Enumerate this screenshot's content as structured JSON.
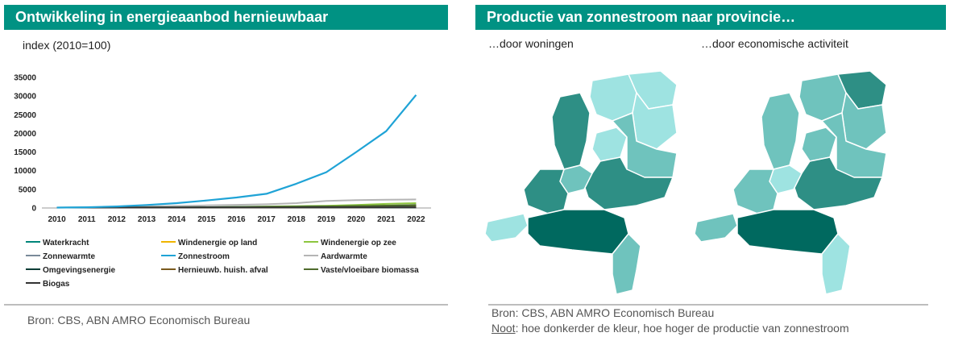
{
  "left": {
    "title": "Ontwikkeling in energieaanbod hernieuwbaar",
    "subtitle": "index (2010=100)",
    "source": "Bron: CBS, ABN AMRO Economisch Bureau"
  },
  "right": {
    "title": "Productie van zonnestroom naar provincie…",
    "map1_label": "…door woningen",
    "map2_label": "…door economische activiteit",
    "source": "Bron: CBS, ABN AMRO Economisch Bureau",
    "note_label": "Noot",
    "note_text": ": hoe donkerder de kleur, hoe hoger de productie van zonnestroom"
  },
  "chart_data": {
    "type": "line",
    "x": [
      "2010",
      "2011",
      "2012",
      "2013",
      "2014",
      "2015",
      "2016",
      "2017",
      "2018",
      "2019",
      "2020",
      "2021",
      "2022"
    ],
    "ylim": [
      0,
      35000
    ],
    "yticks": [
      0,
      5000,
      10000,
      15000,
      20000,
      25000,
      30000,
      35000
    ],
    "series": [
      {
        "name": "Waterkracht",
        "color": "#00857a",
        "values": [
          100,
          100,
          100,
          100,
          100,
          100,
          100,
          100,
          100,
          100,
          100,
          100,
          100
        ]
      },
      {
        "name": "Windenergie op land",
        "color": "#f0b400",
        "values": [
          100,
          110,
          120,
          125,
          135,
          150,
          170,
          200,
          210,
          230,
          300,
          400,
          480
        ]
      },
      {
        "name": "Windenergie op zee",
        "color": "#8dc63f",
        "values": [
          100,
          120,
          150,
          170,
          180,
          200,
          300,
          400,
          500,
          600,
          800,
          1100,
          1300
        ]
      },
      {
        "name": "Zonnewarmte",
        "color": "#7a8a99",
        "values": [
          100,
          110,
          120,
          130,
          140,
          150,
          160,
          170,
          180,
          190,
          200,
          210,
          220
        ]
      },
      {
        "name": "Zonnestroom",
        "color": "#1fa3d6",
        "values": [
          100,
          200,
          400,
          800,
          1300,
          2000,
          2800,
          3800,
          6500,
          9600,
          15000,
          20600,
          30300
        ]
      },
      {
        "name": "Aardwarmte",
        "color": "#b5b5b5",
        "values": [
          100,
          150,
          250,
          400,
          550,
          700,
          850,
          1000,
          1300,
          1900,
          2100,
          2200,
          2300
        ]
      },
      {
        "name": "Omgevingsenergie",
        "color": "#0a3c36",
        "values": [
          100,
          110,
          130,
          150,
          180,
          210,
          250,
          300,
          350,
          420,
          500,
          600,
          700
        ]
      },
      {
        "name": "Hernieuwb. huish. afval",
        "color": "#7a5a1e",
        "values": [
          100,
          105,
          110,
          112,
          115,
          118,
          120,
          125,
          130,
          135,
          140,
          145,
          150
        ]
      },
      {
        "name": "Vaste/vloeibare biomassa",
        "color": "#4f6b2c",
        "values": [
          100,
          110,
          115,
          120,
          140,
          160,
          200,
          250,
          320,
          400,
          500,
          650,
          800
        ]
      },
      {
        "name": "Biogas",
        "color": "#333333",
        "values": [
          100,
          105,
          110,
          115,
          118,
          120,
          125,
          130,
          135,
          140,
          150,
          160,
          170
        ]
      }
    ]
  },
  "map_colors": {
    "light": "#9ee3e1",
    "medium": "#6fc3bd",
    "dark": "#2e8f85",
    "darkest": "#00695f"
  }
}
